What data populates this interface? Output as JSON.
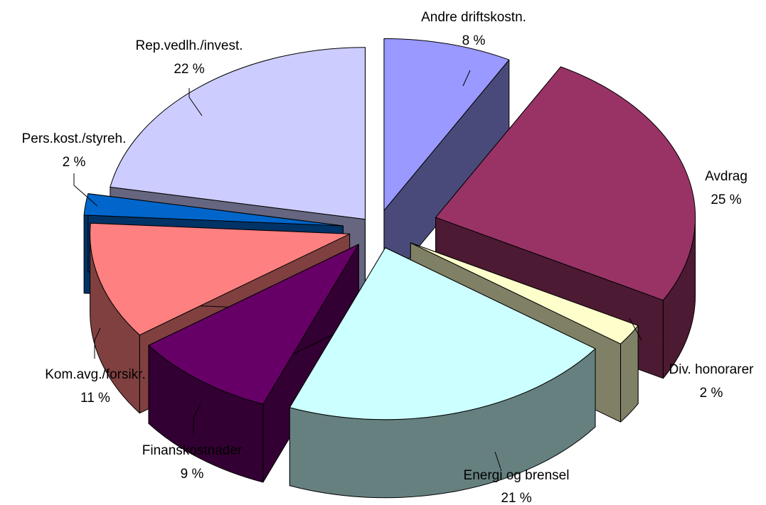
{
  "chart_data": {
    "type": "pie",
    "title": "",
    "legend": "none",
    "slices": [
      {
        "label": "Andre driftskostn.",
        "value": 8,
        "pct_label": "8 %",
        "color": "#9999ff",
        "side": "#4a4a7a"
      },
      {
        "label": "Avdrag",
        "value": 25,
        "pct_label": "25 %",
        "color": "#993366",
        "side": "#4d1a33"
      },
      {
        "label": "Div. honorarer",
        "value": 2,
        "pct_label": "2 %",
        "color": "#ffffcc",
        "side": "#808066"
      },
      {
        "label": "Energi og brensel",
        "value": 21,
        "pct_label": "21 %",
        "color": "#ccffff",
        "side": "#668080"
      },
      {
        "label": "Finanskostnader",
        "value": 9,
        "pct_label": "9 %",
        "color": "#660066",
        "side": "#330033"
      },
      {
        "label": "Kom.avg./forsikr.",
        "value": 11,
        "pct_label": "11 %",
        "color": "#ff8080",
        "side": "#804040"
      },
      {
        "label": "Pers.kost./styreh.",
        "value": 2,
        "pct_label": "2 %",
        "color": "#0066cc",
        "side": "#003366"
      },
      {
        "label": "Rep.vedlh./invest.",
        "value": 22,
        "pct_label": "22 %",
        "color": "#ccccff",
        "side": "#666680"
      }
    ]
  }
}
